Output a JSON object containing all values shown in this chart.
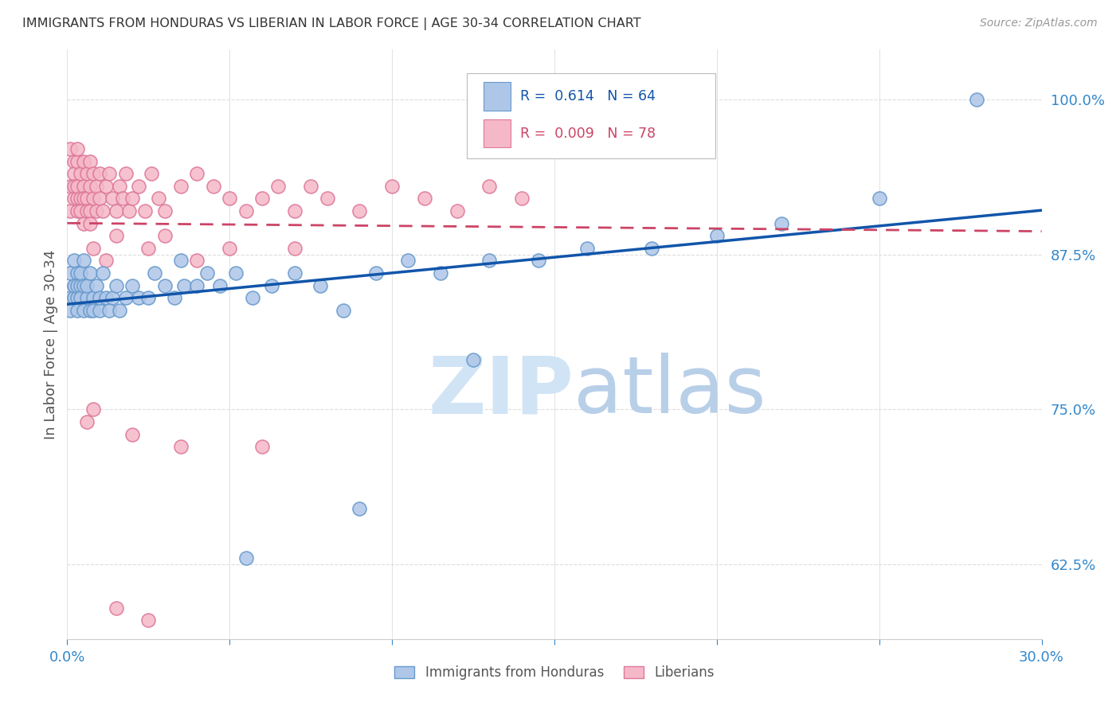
{
  "title": "IMMIGRANTS FROM HONDURAS VS LIBERIAN IN LABOR FORCE | AGE 30-34 CORRELATION CHART",
  "source": "Source: ZipAtlas.com",
  "ylabel": "In Labor Force | Age 30-34",
  "xlim": [
    0.0,
    0.3
  ],
  "ylim": [
    0.565,
    1.04
  ],
  "yticks": [
    0.625,
    0.75,
    0.875,
    1.0
  ],
  "ytick_labels": [
    "62.5%",
    "75.0%",
    "87.5%",
    "100.0%"
  ],
  "xticks": [
    0.0,
    0.05,
    0.1,
    0.15,
    0.2,
    0.25,
    0.3
  ],
  "xtick_labels": [
    "0.0%",
    "",
    "",
    "",
    "",
    "",
    "30.0%"
  ],
  "legend_r_blue": "0.614",
  "legend_n_blue": "64",
  "legend_r_pink": "0.009",
  "legend_n_pink": "78",
  "blue_color": "#aec6e8",
  "blue_edge_color": "#6699cc",
  "pink_color": "#f5b8c8",
  "pink_edge_color": "#dd7799",
  "blue_line_color": "#1155aa",
  "pink_line_color": "#cc4466",
  "watermark_color": "#d0e4f5",
  "title_color": "#333333",
  "axis_color": "#3388cc",
  "grid_color": "#dddddd",
  "source_color": "#999999",
  "honduras_x": [
    0.001,
    0.001,
    0.001,
    0.002,
    0.002,
    0.002,
    0.002,
    0.003,
    0.003,
    0.003,
    0.003,
    0.004,
    0.004,
    0.004,
    0.005,
    0.005,
    0.005,
    0.006,
    0.006,
    0.007,
    0.007,
    0.008,
    0.008,
    0.009,
    0.01,
    0.01,
    0.011,
    0.012,
    0.013,
    0.014,
    0.015,
    0.016,
    0.018,
    0.02,
    0.022,
    0.025,
    0.027,
    0.03,
    0.033,
    0.036,
    0.04,
    0.043,
    0.047,
    0.052,
    0.057,
    0.063,
    0.07,
    0.078,
    0.085,
    0.095,
    0.105,
    0.115,
    0.13,
    0.145,
    0.16,
    0.18,
    0.2,
    0.22,
    0.25,
    0.28,
    0.125,
    0.09,
    0.055,
    0.035
  ],
  "honduras_y": [
    0.84,
    0.86,
    0.83,
    0.85,
    0.84,
    0.87,
    0.85,
    0.84,
    0.86,
    0.85,
    0.83,
    0.85,
    0.84,
    0.86,
    0.83,
    0.85,
    0.87,
    0.84,
    0.85,
    0.83,
    0.86,
    0.84,
    0.83,
    0.85,
    0.83,
    0.84,
    0.86,
    0.84,
    0.83,
    0.84,
    0.85,
    0.83,
    0.84,
    0.85,
    0.84,
    0.84,
    0.86,
    0.85,
    0.84,
    0.85,
    0.85,
    0.86,
    0.85,
    0.86,
    0.84,
    0.85,
    0.86,
    0.85,
    0.83,
    0.86,
    0.87,
    0.86,
    0.87,
    0.87,
    0.88,
    0.88,
    0.89,
    0.9,
    0.92,
    1.0,
    0.79,
    0.67,
    0.63,
    0.87
  ],
  "liberian_x": [
    0.001,
    0.001,
    0.001,
    0.002,
    0.002,
    0.002,
    0.002,
    0.003,
    0.003,
    0.003,
    0.003,
    0.003,
    0.004,
    0.004,
    0.004,
    0.005,
    0.005,
    0.005,
    0.005,
    0.006,
    0.006,
    0.006,
    0.007,
    0.007,
    0.007,
    0.008,
    0.008,
    0.009,
    0.009,
    0.01,
    0.01,
    0.011,
    0.012,
    0.013,
    0.014,
    0.015,
    0.016,
    0.017,
    0.018,
    0.019,
    0.02,
    0.022,
    0.024,
    0.026,
    0.028,
    0.03,
    0.035,
    0.04,
    0.045,
    0.05,
    0.055,
    0.06,
    0.065,
    0.07,
    0.075,
    0.08,
    0.09,
    0.1,
    0.11,
    0.12,
    0.13,
    0.14,
    0.05,
    0.015,
    0.008,
    0.03,
    0.012,
    0.007,
    0.04,
    0.025,
    0.06,
    0.008,
    0.02,
    0.035,
    0.006,
    0.025,
    0.015,
    0.07
  ],
  "liberian_y": [
    0.93,
    0.96,
    0.91,
    0.95,
    0.92,
    0.94,
    0.93,
    0.92,
    0.91,
    0.95,
    0.93,
    0.96,
    0.94,
    0.92,
    0.91,
    0.95,
    0.93,
    0.92,
    0.9,
    0.94,
    0.92,
    0.91,
    0.93,
    0.95,
    0.91,
    0.94,
    0.92,
    0.93,
    0.91,
    0.94,
    0.92,
    0.91,
    0.93,
    0.94,
    0.92,
    0.91,
    0.93,
    0.92,
    0.94,
    0.91,
    0.92,
    0.93,
    0.91,
    0.94,
    0.92,
    0.91,
    0.93,
    0.94,
    0.93,
    0.92,
    0.91,
    0.92,
    0.93,
    0.91,
    0.93,
    0.92,
    0.91,
    0.93,
    0.92,
    0.91,
    0.93,
    0.92,
    0.88,
    0.89,
    0.88,
    0.89,
    0.87,
    0.9,
    0.87,
    0.88,
    0.72,
    0.75,
    0.73,
    0.72,
    0.74,
    0.58,
    0.59,
    0.88
  ]
}
